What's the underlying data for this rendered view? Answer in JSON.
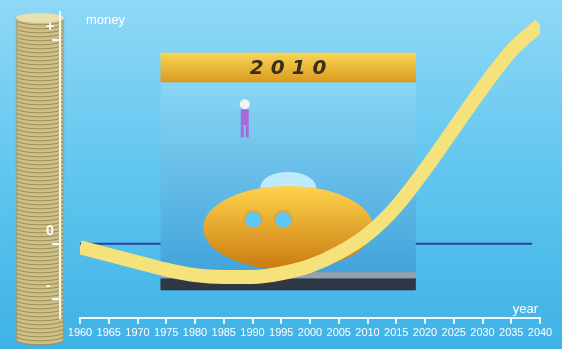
{
  "chart_data": {
    "type": "line",
    "ylabel": "money",
    "xlabel": "year",
    "annotations": [
      {
        "text": "2010"
      }
    ],
    "x": [
      1960,
      1965,
      1970,
      1975,
      1980,
      1985,
      1990,
      1995,
      2000,
      2005,
      2010,
      2015,
      2020,
      2025,
      2030,
      2035,
      2040
    ],
    "values": [
      -0.2,
      -0.6,
      -1.0,
      -1.4,
      -1.7,
      -1.8,
      -1.8,
      -1.6,
      -1.2,
      -0.5,
      0.5,
      2.0,
      4.0,
      6.2,
      8.4,
      10.4,
      11.8
    ],
    "color": "#f5e27a",
    "xlim": [
      1960,
      2040
    ],
    "xticks": [
      1960,
      1965,
      1970,
      1975,
      1980,
      1985,
      1990,
      1995,
      2000,
      2005,
      2010,
      2015,
      2020,
      2025,
      2030,
      2035,
      2040
    ],
    "ylim": [
      -4,
      12.5
    ],
    "yticks": [
      {
        "value": -3,
        "label": "-"
      },
      0,
      {
        "value": 11,
        "label": "+"
      }
    ],
    "hline": 0,
    "grid": false
  }
}
